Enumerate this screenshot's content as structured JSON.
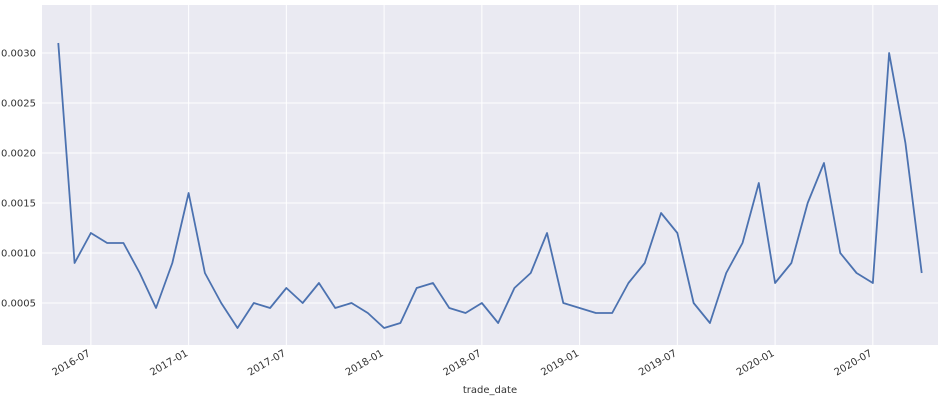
{
  "chart_data": {
    "type": "line",
    "x_label": "trade_date",
    "x": [
      "2016-05",
      "2016-06",
      "2016-07",
      "2016-08",
      "2016-09",
      "2016-10",
      "2016-11",
      "2016-12",
      "2017-01",
      "2017-02",
      "2017-03",
      "2017-04",
      "2017-05",
      "2017-06",
      "2017-07",
      "2017-08",
      "2017-09",
      "2017-10",
      "2017-11",
      "2017-12",
      "2018-01",
      "2018-02",
      "2018-03",
      "2018-04",
      "2018-05",
      "2018-06",
      "2018-07",
      "2018-08",
      "2018-09",
      "2018-10",
      "2018-11",
      "2018-12",
      "2019-01",
      "2019-02",
      "2019-03",
      "2019-04",
      "2019-05",
      "2019-06",
      "2019-07",
      "2019-08",
      "2019-09",
      "2019-10",
      "2019-11",
      "2019-12",
      "2020-01",
      "2020-02",
      "2020-03",
      "2020-04",
      "2020-05",
      "2020-06",
      "2020-07",
      "2020-08",
      "2020-09",
      "2020-10"
    ],
    "series": [
      {
        "color": "#4c72b0",
        "values": [
          0.0031,
          0.0009,
          0.0012,
          0.0011,
          0.0011,
          0.0008,
          0.00045,
          0.0009,
          0.0016,
          0.0008,
          0.0005,
          0.00025,
          0.0005,
          0.00045,
          0.00065,
          0.0005,
          0.0007,
          0.00045,
          0.0005,
          0.0004,
          0.00025,
          0.0003,
          0.00065,
          0.0007,
          0.00045,
          0.0004,
          0.0005,
          0.0003,
          0.00065,
          0.0008,
          0.0012,
          0.0005,
          0.00045,
          0.0004,
          0.0004,
          0.0007,
          0.0009,
          0.0014,
          0.0012,
          0.0005,
          0.0003,
          0.0008,
          0.0011,
          0.0017,
          0.0007,
          0.0009,
          0.0015,
          0.0019,
          0.001,
          0.0008,
          0.0007,
          0.003,
          0.0021,
          0.0008
        ]
      }
    ],
    "xlim": [
      "2016-04",
      "2020-11"
    ],
    "xticks": [
      "2016-07",
      "2017-01",
      "2017-07",
      "2018-01",
      "2018-07",
      "2019-01",
      "2019-07",
      "2020-01",
      "2020-07"
    ],
    "ylim": [
      8e-05,
      0.00348
    ],
    "yticks": [
      0.0005,
      {
        "value": 0.001,
        "label": "0.0010"
      },
      0.0015,
      {
        "value": 0.002,
        "label": "0.0020"
      },
      0.0025,
      {
        "value": 0.003,
        "label": "0.0030"
      }
    ],
    "grid": true
  }
}
